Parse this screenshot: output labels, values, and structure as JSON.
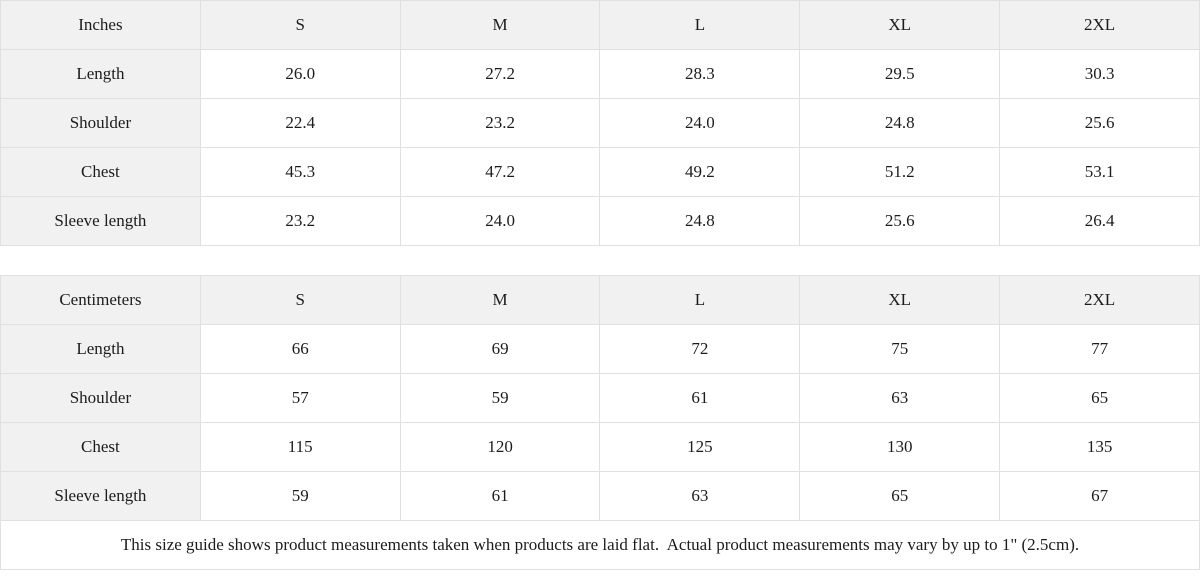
{
  "colors": {
    "header_bg": "#f1f1f1",
    "cell_bg": "#ffffff",
    "border": "#e0e0e0",
    "text": "#1c1c1c"
  },
  "inches": {
    "header": [
      "Inches",
      "S",
      "M",
      "L",
      "XL",
      "2XL"
    ],
    "rows": [
      {
        "label": "Length",
        "values": [
          "26.0",
          "27.2",
          "28.3",
          "29.5",
          "30.3"
        ]
      },
      {
        "label": "Shoulder",
        "values": [
          "22.4",
          "23.2",
          "24.0",
          "24.8",
          "25.6"
        ]
      },
      {
        "label": "Chest",
        "values": [
          "45.3",
          "47.2",
          "49.2",
          "51.2",
          "53.1"
        ]
      },
      {
        "label": "Sleeve length",
        "values": [
          "23.2",
          "24.0",
          "24.8",
          "25.6",
          "26.4"
        ]
      }
    ]
  },
  "centimeters": {
    "header": [
      "Centimeters",
      "S",
      "M",
      "L",
      "XL",
      "2XL"
    ],
    "rows": [
      {
        "label": "Length",
        "values": [
          "66",
          "69",
          "72",
          "75",
          "77"
        ]
      },
      {
        "label": "Shoulder",
        "values": [
          "57",
          "59",
          "61",
          "63",
          "65"
        ]
      },
      {
        "label": "Chest",
        "values": [
          "115",
          "120",
          "125",
          "130",
          "135"
        ]
      },
      {
        "label": "Sleeve length",
        "values": [
          "59",
          "61",
          "63",
          "65",
          "67"
        ]
      }
    ]
  },
  "footer": {
    "note": "This size guide shows product measurements taken when products are laid flat.  Actual product measurements may vary by up to 1\" (2.5cm)."
  },
  "chart_data": {
    "type": "table",
    "tables": [
      {
        "title": "Inches",
        "columns": [
          "S",
          "M",
          "L",
          "XL",
          "2XL"
        ],
        "rows": {
          "Length": [
            26.0,
            27.2,
            28.3,
            29.5,
            30.3
          ],
          "Shoulder": [
            22.4,
            23.2,
            24.0,
            24.8,
            25.6
          ],
          "Chest": [
            45.3,
            47.2,
            49.2,
            51.2,
            53.1
          ],
          "Sleeve length": [
            23.2,
            24.0,
            24.8,
            25.6,
            26.4
          ]
        }
      },
      {
        "title": "Centimeters",
        "columns": [
          "S",
          "M",
          "L",
          "XL",
          "2XL"
        ],
        "rows": {
          "Length": [
            66,
            69,
            72,
            75,
            77
          ],
          "Shoulder": [
            57,
            59,
            61,
            63,
            65
          ],
          "Chest": [
            115,
            120,
            125,
            130,
            135
          ],
          "Sleeve length": [
            59,
            61,
            63,
            65,
            67
          ]
        }
      }
    ]
  }
}
